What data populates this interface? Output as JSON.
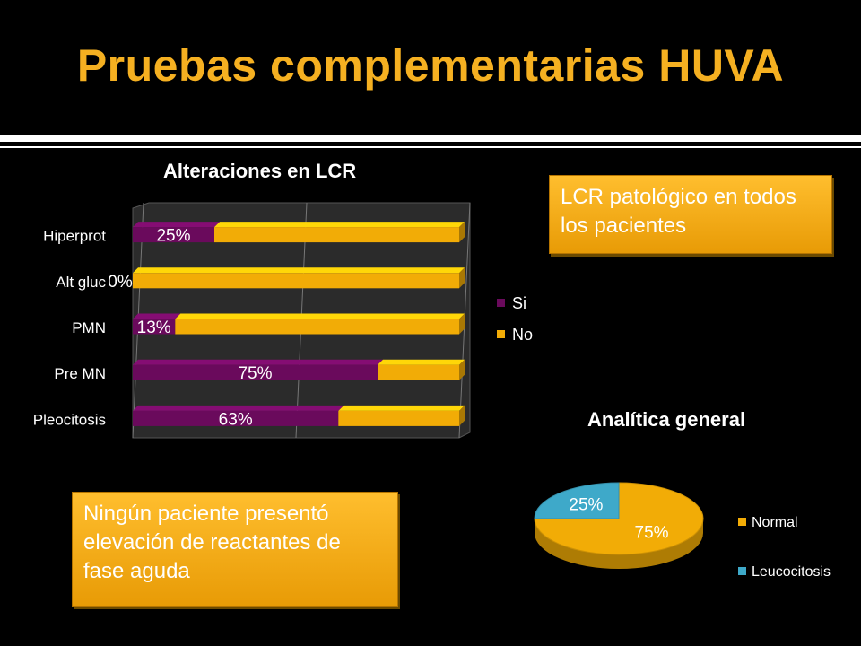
{
  "slide": {
    "title": "Pruebas complementarias HUVA"
  },
  "callouts": {
    "lcr": "LCR patológico en todos los pacientes",
    "reactantes": "Ningún paciente presentó elevación de reactantes de fase aguda"
  },
  "colors": {
    "accent": "#f5b021",
    "si": "#6a0a5c",
    "no": "#f2ac06",
    "normal": "#f2ac06",
    "leucocitosis": "#3ea9c9"
  },
  "chart_data": [
    {
      "type": "bar",
      "orientation": "horizontal",
      "stacked": "100%",
      "title": "Alteraciones en LCR",
      "categories": [
        "Hiperprot",
        "Alt gluc",
        "PMN",
        "Pre MN",
        "Pleocitosis"
      ],
      "series": [
        {
          "name": "Si",
          "values": [
            25,
            0,
            13,
            75,
            63
          ],
          "labels": [
            "25%",
            "0%",
            "13%",
            "75%",
            "63%"
          ]
        },
        {
          "name": "No",
          "values": [
            75,
            100,
            87,
            25,
            37
          ]
        }
      ],
      "xlim": [
        0,
        100
      ],
      "grid": true,
      "legend": "right"
    },
    {
      "type": "pie",
      "title": "Analítica general",
      "slices": [
        {
          "name": "Normal",
          "value": 75,
          "label": "75%"
        },
        {
          "name": "Leucocitosis",
          "value": 25,
          "label": "25%"
        }
      ],
      "legend": "right"
    }
  ]
}
